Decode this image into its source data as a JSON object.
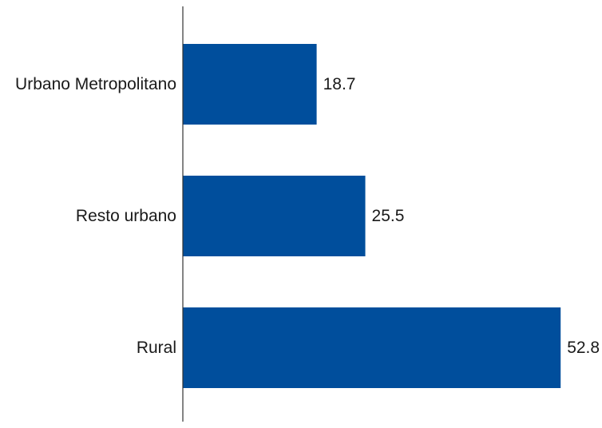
{
  "chart_data": {
    "type": "bar",
    "orientation": "horizontal",
    "categories": [
      "Urbano Metropolitano",
      "Resto urbano",
      "Rural"
    ],
    "values": [
      18.7,
      25.5,
      52.8
    ],
    "title": "",
    "xlabel": "",
    "ylabel": "",
    "xlim": [
      0,
      53
    ],
    "grid": false,
    "legend": "none",
    "bar_color": "#004e9c",
    "text_color": "#1a1a1a",
    "axis_color": "#333333"
  }
}
